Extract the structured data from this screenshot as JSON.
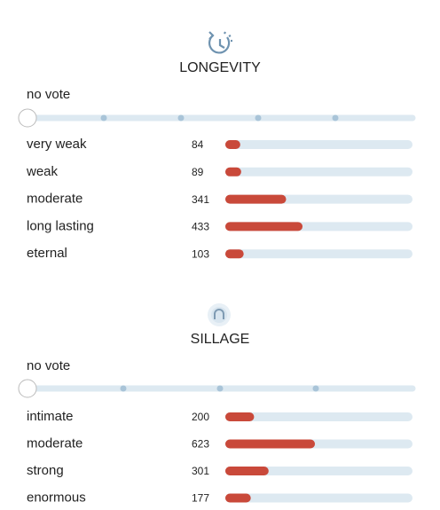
{
  "sections": [
    {
      "title": "LONGEVITY",
      "vote": "no vote",
      "rows": [
        {
          "label": "very weak",
          "count": 84
        },
        {
          "label": "weak",
          "count": 89
        },
        {
          "label": "moderate",
          "count": 341
        },
        {
          "label": "long lasting",
          "count": 433
        },
        {
          "label": "eternal",
          "count": 103
        }
      ]
    },
    {
      "title": "SILLAGE",
      "vote": "no vote",
      "rows": [
        {
          "label": "intimate",
          "count": 200
        },
        {
          "label": "moderate",
          "count": 623
        },
        {
          "label": "strong",
          "count": 301
        },
        {
          "label": "enormous",
          "count": 177
        }
      ]
    }
  ]
}
